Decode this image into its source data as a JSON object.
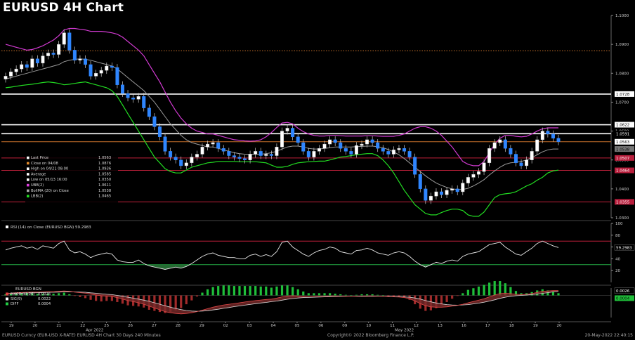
{
  "title": "EURUSD 4H Chart",
  "chart_data": {
    "type": "candlestick",
    "price_axis": {
      "ylim": [
        1.03,
        1.1
      ],
      "ticks": [
        1.1,
        1.09,
        1.08,
        1.07,
        1.06,
        1.05,
        1.04,
        1.03
      ],
      "tick_labels": [
        "1.1000",
        "1.0900",
        "1.0800",
        "1.0700",
        "1.0600",
        "1.0500",
        "1.0400",
        "1.0300"
      ]
    },
    "x_axis": {
      "tick_labels": [
        "19",
        "20",
        "21",
        "22",
        "25",
        "26",
        "27",
        "28",
        "29",
        "02",
        "03",
        "04",
        "05",
        "06",
        "09",
        "10",
        "11",
        "12",
        "13",
        "16",
        "17",
        "18",
        "19",
        "20"
      ],
      "month_labels": [
        {
          "label": "Apr 2022",
          "after_index": 3
        },
        {
          "label": "May 2022",
          "after_index": 16
        }
      ]
    },
    "horizontal_lines": [
      {
        "value": 1.0878,
        "color": "#c8712a",
        "style": "dotted"
      },
      {
        "value": 1.0728,
        "color": "#ffffff",
        "label": "1.0728"
      },
      {
        "value": 1.0622,
        "color": "#ffffff",
        "label": "1.0622"
      },
      {
        "value": 1.0591,
        "color": "#ffffff",
        "label": "1.0591"
      },
      {
        "value": 1.0563,
        "color": "#c8712a",
        "label": "1.0563"
      },
      {
        "value": 1.0507,
        "color": "#c0203a",
        "label": "1.0507"
      },
      {
        "value": 1.0464,
        "color": "#c0203a",
        "label": "1.0464"
      },
      {
        "value": 1.0355,
        "color": "#c0203a",
        "label": "1.0355"
      }
    ],
    "right_tags": [
      {
        "value": 1.0728,
        "label": "1.0728",
        "bg": "#ffffff",
        "fg": "#000000"
      },
      {
        "value": 1.0622,
        "label": "1.0622",
        "bg": "#ffffff",
        "fg": "#000000"
      },
      {
        "value": 1.0591,
        "label": "1.0591",
        "bg": "#000000",
        "fg": "#ffffff"
      },
      {
        "value": 1.0563,
        "label": "1.0563",
        "bg": "#ffffff",
        "fg": "#000000"
      },
      {
        "value": 1.0538,
        "label": "1.0538",
        "bg": "#777777",
        "fg": "#000000"
      },
      {
        "value": 1.0507,
        "label": "1.0507",
        "bg": "#b81e3c",
        "fg": "#ffffff"
      },
      {
        "value": 1.0464,
        "label": "1.0464",
        "bg": "#b81e3c",
        "fg": "#ffffff"
      },
      {
        "value": 1.0355,
        "label": "1.0355",
        "bg": "#b81e3c",
        "fg": "#ffffff"
      }
    ],
    "legend": {
      "placement": "middle-left",
      "entries": [
        {
          "label": "Last Price",
          "value": "1.0563",
          "color": "#ffffff"
        },
        {
          "label": "Close on 04/08",
          "value": "1.0876",
          "color": "#e08a2c"
        },
        {
          "label": "High on 04/21 08:00",
          "value": "1.0936",
          "color": "#ffffff"
        },
        {
          "label": "Average",
          "value": "1.0585",
          "color": "#ffffff"
        },
        {
          "label": "Low on 05/13 16:00",
          "value": "1.0350",
          "color": "#ffffff"
        },
        {
          "label": "UBB(2)",
          "value": "1.0611",
          "color": "#e040e0"
        },
        {
          "label": "BollMA (20) on Close",
          "value": "1.0538",
          "color": "#aaaaaa"
        },
        {
          "label": "LBB(2)",
          "value": "1.0465",
          "color": "#22dd22"
        }
      ]
    },
    "price_series": {
      "close": [
        1.079,
        1.0805,
        1.0815,
        1.083,
        1.082,
        1.085,
        1.0835,
        1.086,
        1.087,
        1.0865,
        1.09,
        1.094,
        1.088,
        1.0845,
        1.085,
        1.083,
        1.079,
        1.08,
        1.081,
        1.0825,
        1.082,
        1.076,
        1.073,
        1.0715,
        1.071,
        1.072,
        1.068,
        1.065,
        1.0615,
        1.058,
        1.053,
        1.051,
        1.05,
        1.048,
        1.049,
        1.051,
        1.052,
        1.0545,
        1.0555,
        1.056,
        1.054,
        1.053,
        1.0515,
        1.051,
        1.0505,
        1.05,
        1.052,
        1.053,
        1.0515,
        1.052,
        1.0515,
        1.0545,
        1.06,
        1.061,
        1.058,
        1.056,
        1.053,
        1.051,
        1.053,
        1.054,
        1.0555,
        1.057,
        1.056,
        1.054,
        1.053,
        1.052,
        1.055,
        1.0555,
        1.057,
        1.056,
        1.054,
        1.053,
        1.052,
        1.0535,
        1.054,
        1.053,
        1.051,
        1.045,
        1.04,
        1.036,
        1.0375,
        1.039,
        1.038,
        1.0395,
        1.04,
        1.039,
        1.042,
        1.044,
        1.045,
        1.046,
        1.049,
        1.054,
        1.056,
        1.057,
        1.054,
        1.052,
        1.049,
        1.048,
        1.05,
        1.053,
        1.057,
        1.06,
        1.059,
        1.0575,
        1.0563
      ],
      "average": [
        1.078,
        1.0785,
        1.079,
        1.0795,
        1.08,
        1.0805,
        1.081,
        1.0815,
        1.082,
        1.0825,
        1.083,
        1.084,
        1.0845,
        1.0848,
        1.085,
        1.0848,
        1.0845,
        1.084,
        1.0835,
        1.083,
        1.0825,
        1.0815,
        1.08,
        1.0785,
        1.077,
        1.0755,
        1.074,
        1.072,
        1.07,
        1.0675,
        1.065,
        1.0625,
        1.0605,
        1.0585,
        1.057,
        1.056,
        1.0555,
        1.055,
        1.0545,
        1.0545,
        1.054,
        1.0535,
        1.053,
        1.0525,
        1.0522,
        1.052,
        1.052,
        1.052,
        1.052,
        1.0522,
        1.0525,
        1.053,
        1.0538,
        1.0545,
        1.0548,
        1.0548,
        1.0545,
        1.054,
        1.0538,
        1.0538,
        1.054,
        1.0542,
        1.0545,
        1.0545,
        1.0545,
        1.0545,
        1.0546,
        1.0547,
        1.0548,
        1.0548,
        1.0546,
        1.0542,
        1.0536,
        1.0528,
        1.0518,
        1.0505,
        1.049,
        1.0475,
        1.046,
        1.0445,
        1.0432,
        1.042,
        1.0412,
        1.0405,
        1.04,
        1.0398,
        1.0398,
        1.0402,
        1.041,
        1.042,
        1.0432,
        1.0448,
        1.0462,
        1.0475,
        1.0485,
        1.049,
        1.0492,
        1.0495,
        1.05,
        1.0508,
        1.0518,
        1.0528,
        1.0535,
        1.0538,
        1.0538
      ],
      "upper_band": [
        1.09,
        1.0895,
        1.089,
        1.0885,
        1.088,
        1.0882,
        1.0888,
        1.0895,
        1.0905,
        1.0915,
        1.093,
        1.095,
        1.0955,
        1.0955,
        1.0952,
        1.095,
        1.0945,
        1.0945,
        1.0945,
        1.0943,
        1.094,
        1.0935,
        1.0925,
        1.091,
        1.0895,
        1.088,
        1.086,
        1.083,
        1.08,
        1.077,
        1.0735,
        1.07,
        1.067,
        1.0645,
        1.0625,
        1.061,
        1.06,
        1.0595,
        1.059,
        1.059,
        1.0585,
        1.058,
        1.0575,
        1.057,
        1.0568,
        1.0566,
        1.0565,
        1.0566,
        1.057,
        1.058,
        1.0595,
        1.0612,
        1.0628,
        1.063,
        1.0625,
        1.061,
        1.0598,
        1.059,
        1.0585,
        1.0583,
        1.0583,
        1.0585,
        1.0585,
        1.0584,
        1.0583,
        1.0583,
        1.0583,
        1.0583,
        1.0584,
        1.0584,
        1.0583,
        1.0582,
        1.0582,
        1.0582,
        1.0585,
        1.059,
        1.06,
        1.061,
        1.0615,
        1.0615,
        1.061,
        1.06,
        1.0585,
        1.0565,
        1.0545,
        1.052,
        1.0495,
        1.0485,
        1.048,
        1.048,
        1.0495,
        1.0525,
        1.0555,
        1.0575,
        1.0585,
        1.0585,
        1.0582,
        1.058,
        1.0582,
        1.059,
        1.06,
        1.0608,
        1.0611,
        1.0611,
        1.0611
      ],
      "lower_band": [
        1.075,
        1.0752,
        1.0755,
        1.0758,
        1.076,
        1.0762,
        1.0765,
        1.0768,
        1.077,
        1.0768,
        1.0765,
        1.076,
        1.0762,
        1.0765,
        1.0768,
        1.077,
        1.0765,
        1.076,
        1.0755,
        1.075,
        1.074,
        1.072,
        1.069,
        1.066,
        1.063,
        1.06,
        1.057,
        1.054,
        1.051,
        1.049,
        1.047,
        1.046,
        1.0455,
        1.0455,
        1.0465,
        1.0475,
        1.048,
        1.0485,
        1.049,
        1.0492,
        1.0495,
        1.0495,
        1.0495,
        1.0495,
        1.0494,
        1.0494,
        1.0494,
        1.0494,
        1.0492,
        1.049,
        1.0482,
        1.0475,
        1.0475,
        1.0478,
        1.0485,
        1.049,
        1.0492,
        1.0494,
        1.0495,
        1.0496,
        1.0496,
        1.05,
        1.0505,
        1.051,
        1.0512,
        1.0515,
        1.0518,
        1.052,
        1.0522,
        1.0522,
        1.0515,
        1.05,
        1.048,
        1.0455,
        1.0425,
        1.0395,
        1.037,
        1.0345,
        1.033,
        1.0315,
        1.031,
        1.031,
        1.0318,
        1.0325,
        1.033,
        1.033,
        1.0325,
        1.031,
        1.0305,
        1.0305,
        1.032,
        1.0345,
        1.037,
        1.038,
        1.0383,
        1.0385,
        1.039,
        1.04,
        1.041,
        1.0418,
        1.043,
        1.044,
        1.0455,
        1.0462,
        1.0465
      ]
    },
    "rsi": {
      "label": "RSI (14) on Close (EURUSD BGN)",
      "last": "59.2983",
      "ylim": [
        0,
        100
      ],
      "ticks": [
        100,
        80,
        60,
        40,
        20
      ],
      "levels": [
        {
          "value": 70,
          "color": "#c0203a"
        },
        {
          "value": 30,
          "color": "#22aa44"
        }
      ],
      "values": [
        55,
        58,
        60,
        62,
        58,
        60,
        56,
        62,
        60,
        58,
        66,
        70,
        55,
        50,
        52,
        48,
        42,
        46,
        48,
        50,
        48,
        38,
        35,
        34,
        34,
        38,
        32,
        28,
        26,
        24,
        22,
        24,
        26,
        24,
        27,
        32,
        38,
        44,
        48,
        50,
        46,
        44,
        42,
        42,
        40,
        40,
        46,
        48,
        44,
        47,
        44,
        52,
        68,
        70,
        60,
        54,
        48,
        44,
        50,
        54,
        56,
        60,
        58,
        52,
        50,
        48,
        54,
        55,
        58,
        55,
        50,
        48,
        46,
        50,
        52,
        50,
        44,
        36,
        30,
        26,
        30,
        34,
        32,
        36,
        38,
        36,
        44,
        48,
        50,
        52,
        58,
        64,
        66,
        68,
        60,
        54,
        48,
        46,
        52,
        58,
        66,
        70,
        66,
        62,
        59
      ]
    },
    "macd": {
      "label": "EURUSD BGN",
      "entries": [
        {
          "label": "MACD(12,26)",
          "value": "0.0026",
          "color": "#e04040"
        },
        {
          "label": "SIG(9)",
          "value": "0.0022",
          "color": "#ffffff"
        },
        {
          "label": "DIFF",
          "value": "0.0004",
          "color": "#22cc44"
        }
      ],
      "right_tags": [
        "0.0026",
        "0.0004"
      ],
      "ylim": [
        -0.012,
        0.004
      ],
      "macd": [
        0.001,
        0.0012,
        0.0014,
        0.0016,
        0.0017,
        0.0018,
        0.0018,
        0.0019,
        0.002,
        0.002,
        0.0022,
        0.0024,
        0.0022,
        0.0018,
        0.0015,
        0.0012,
        0.0006,
        0.0002,
        -0.0002,
        -0.0004,
        -0.0006,
        -0.0012,
        -0.002,
        -0.0028,
        -0.0034,
        -0.004,
        -0.0048,
        -0.0058,
        -0.0068,
        -0.0078,
        -0.0088,
        -0.0094,
        -0.0098,
        -0.01,
        -0.0098,
        -0.0094,
        -0.0088,
        -0.008,
        -0.0072,
        -0.0064,
        -0.0058,
        -0.0052,
        -0.0048,
        -0.0044,
        -0.004,
        -0.0036,
        -0.0032,
        -0.0028,
        -0.0025,
        -0.0022,
        -0.002,
        -0.0015,
        -0.0008,
        -0.0003,
        -0.0002,
        -0.0003,
        -0.0005,
        -0.0007,
        -0.0006,
        -0.0005,
        -0.0004,
        -0.0003,
        -0.0003,
        -0.0004,
        -0.0005,
        -0.0006,
        -0.0005,
        -0.0004,
        -0.0003,
        -0.0003,
        -0.0004,
        -0.0005,
        -0.0007,
        -0.0008,
        -0.0009,
        -0.0012,
        -0.0018,
        -0.003,
        -0.0044,
        -0.0056,
        -0.0062,
        -0.0064,
        -0.0064,
        -0.0062,
        -0.0058,
        -0.0054,
        -0.0048,
        -0.004,
        -0.0033,
        -0.0026,
        -0.0018,
        -0.0008,
        0.0002,
        0.001,
        0.0012,
        0.001,
        0.0006,
        0.0004,
        0.0006,
        0.001,
        0.0016,
        0.0022,
        0.0024,
        0.0026,
        0.0026
      ],
      "signal": [
        0.0008,
        0.0009,
        0.001,
        0.0012,
        0.0013,
        0.0014,
        0.0015,
        0.0016,
        0.0017,
        0.0017,
        0.0018,
        0.0019,
        0.002,
        0.0019,
        0.0018,
        0.0017,
        0.0014,
        0.0012,
        0.0009,
        0.0006,
        0.0004,
        0.0,
        -0.0005,
        -0.001,
        -0.0015,
        -0.002,
        -0.0026,
        -0.0032,
        -0.004,
        -0.0048,
        -0.0056,
        -0.0064,
        -0.0071,
        -0.0077,
        -0.0082,
        -0.0085,
        -0.0086,
        -0.0085,
        -0.0083,
        -0.0079,
        -0.0075,
        -0.007,
        -0.0066,
        -0.0061,
        -0.0057,
        -0.0053,
        -0.0049,
        -0.0045,
        -0.0041,
        -0.0038,
        -0.0034,
        -0.0031,
        -0.0026,
        -0.0021,
        -0.0017,
        -0.0014,
        -0.0012,
        -0.0011,
        -0.001,
        -0.0009,
        -0.0008,
        -0.0007,
        -0.0006,
        -0.0006,
        -0.0006,
        -0.0006,
        -0.0006,
        -0.0006,
        -0.0005,
        -0.0005,
        -0.0005,
        -0.0005,
        -0.0005,
        -0.0006,
        -0.0007,
        -0.0008,
        -0.001,
        -0.0014,
        -0.002,
        -0.0028,
        -0.0035,
        -0.0041,
        -0.0046,
        -0.005,
        -0.0052,
        -0.0053,
        -0.0052,
        -0.005,
        -0.0046,
        -0.0042,
        -0.0037,
        -0.0031,
        -0.0024,
        -0.0016,
        -0.001,
        -0.0005,
        -0.0002,
        0.0,
        0.0002,
        0.0004,
        0.0007,
        0.0011,
        0.0015,
        0.0019,
        0.0022
      ]
    }
  },
  "footer": {
    "left": "EURUSD Curncy (EUR-USD X-RATE) EURUSD 4H Chart 30 Days 240 Minutes",
    "center": "Copyright© 2022 Bloomberg Finance L.P.",
    "right": "20-May-2022 22:40:15"
  }
}
